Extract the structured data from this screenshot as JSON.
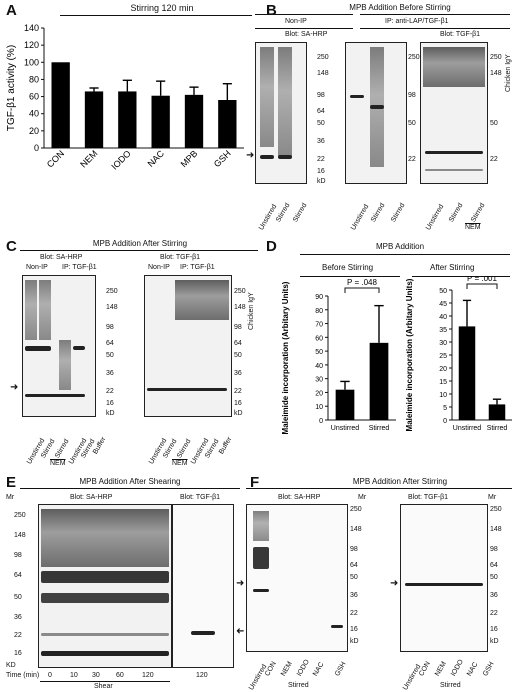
{
  "panels": {
    "A": {
      "letter": "A",
      "header": "Stirring 120 min",
      "chart_data": {
        "type": "bar",
        "categories": [
          "CON",
          "NEM",
          "IODO",
          "NAC",
          "MPB",
          "GSH"
        ],
        "values": [
          100,
          66,
          66,
          61,
          62,
          56
        ],
        "errors": [
          0,
          4,
          13,
          17,
          9,
          19
        ],
        "ylabel": "TGF-β1 activity (%)",
        "ylim": [
          0,
          140
        ],
        "yticks": [
          "0",
          "20",
          "40",
          "60",
          "80",
          "100",
          "120",
          "140"
        ]
      }
    },
    "B": {
      "letter": "B",
      "title": "MPB Addition Before Stirring",
      "groups": [
        "Non-IP",
        "IP: anti-LAP/TGF-β1"
      ],
      "blot1": "Blot: SA-HRP",
      "blot2": "Blot: TGF-β1",
      "markers": [
        "250",
        "148",
        "98",
        "64",
        "50",
        "36",
        "22",
        "16",
        "kD"
      ],
      "lanes": [
        "Unstirred",
        "Stirred",
        "Stirred",
        "NEM"
      ],
      "side_label": "Chicken IgY"
    },
    "C": {
      "letter": "C",
      "title": "MPB Addition After Stirring",
      "blot1": "Blot: SA-HRP",
      "blot2": "Blot: TGF-β1",
      "groups": [
        "Non-IP",
        "IP: TGF-β1"
      ],
      "markers": [
        "250",
        "148",
        "98",
        "64",
        "50",
        "36",
        "22",
        "16",
        "kD"
      ],
      "lanes": [
        "Unstirred",
        "Stirred",
        "Stirred",
        "Unstirred",
        "Stirred",
        "Buffer"
      ],
      "nem": "NEM",
      "side_label": "Chicken IgY"
    },
    "D": {
      "letter": "D",
      "title": "MPB Addition",
      "left": {
        "subtitle": "Before Stirring",
        "p": "P = .048",
        "chart_data": {
          "type": "bar",
          "categories": [
            "Unstirred",
            "Stirred"
          ],
          "values": [
            22,
            56
          ],
          "errors": [
            6,
            27
          ],
          "ylabel": "Maleimide incorporation (Arbitary Units)",
          "ylim": [
            0,
            90
          ],
          "yticks": [
            "0",
            "10",
            "20",
            "30",
            "40",
            "50",
            "60",
            "70",
            "80",
            "90"
          ]
        }
      },
      "right": {
        "subtitle": "After Stirring",
        "p": "P = .001",
        "chart_data": {
          "type": "bar",
          "categories": [
            "Unstirred",
            "Stirred"
          ],
          "values": [
            36,
            6
          ],
          "errors": [
            10,
            2
          ],
          "ylabel": "Maleimide incorporation (Arbitary Units)",
          "ylim": [
            0,
            50
          ],
          "yticks": [
            "0",
            "5",
            "10",
            "15",
            "20",
            "25",
            "30",
            "35",
            "40",
            "45",
            "50"
          ]
        }
      }
    },
    "E": {
      "letter": "E",
      "title": "MPB Addition After Shearing",
      "mr": "Mr",
      "blot1": "Blot: SA-HRP",
      "blot2": "Blot: TGF-β1",
      "markers": [
        "250",
        "148",
        "98",
        "64",
        "50",
        "36",
        "22",
        "16",
        "KD"
      ],
      "time_label": "Time (min)",
      "times": [
        "0",
        "10",
        "30",
        "60",
        "120",
        "120"
      ],
      "shear": "Shear"
    },
    "F": {
      "letter": "F",
      "title": "MPB Addition After Stirring",
      "blot1": "Blot: SA-HRP",
      "blot2": "Blot: TGF-β1",
      "mr": "Mr",
      "markers": [
        "250",
        "148",
        "98",
        "64",
        "50",
        "36",
        "22",
        "16",
        "kD"
      ],
      "lanes": [
        "Unstirred",
        "CON",
        "NEM",
        "IODO",
        "NAC",
        "GSH"
      ],
      "stirred": "Stirred"
    }
  }
}
